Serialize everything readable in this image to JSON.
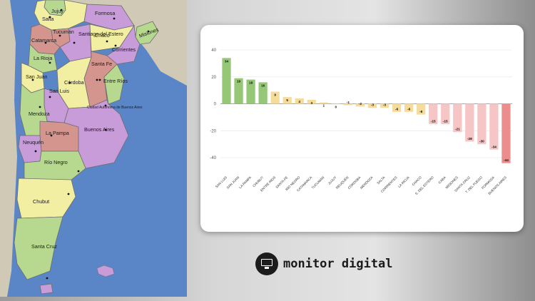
{
  "map": {
    "provinces": {
      "salta": "Salta",
      "jujuy": "Jujuy",
      "formosa": "Formosa",
      "misiones": "Misiones",
      "tucuman": "Tucumán",
      "santiago": "Santiago del Estero",
      "chaco": "Chaco",
      "catamarca": "Catamarca",
      "corrientes": "Corrientes",
      "larioja": "La Rioja",
      "santafe": "Santa Fe",
      "entrerios": "Entre Ríos",
      "sanjuan": "San Juan",
      "cordoba": "Córdoba",
      "sanluis": "San Luis",
      "caba": "Ciudad Autónoma de Buenos Aires",
      "mendoza": "Mendoza",
      "lapampa": "La Pampa",
      "buenosaires": "Buenos Aires",
      "neuquen": "Neuquén",
      "rionegro": "Río Negro",
      "chubut": "Chubut",
      "santacruz": "Santa Cruz"
    }
  },
  "chart_data": {
    "type": "bar",
    "title": "",
    "xlabel": "",
    "ylabel": "",
    "ylim": [
      -50,
      40
    ],
    "yticks": [
      40,
      20,
      0,
      -20,
      -40
    ],
    "grid": "horizontal",
    "categories": [
      "SAN LUIS",
      "SAN JUAN",
      "LA PAMPA",
      "CHUBUT",
      "ENTRE RÍOS",
      "SANTA FE",
      "RÍO NEGRO",
      "CATAMARCA",
      "TUCUMÁN",
      "JUJUY",
      "NEUQUÉN",
      "CÓRDOBA",
      "MENDOZA",
      "SALTA",
      "CORRIENTES",
      "LA RIOJA",
      "CHACO",
      "S. DEL ESTERO",
      "CABA",
      "MISIONES",
      "SANTA CRUZ",
      "T. DEL FUEGO",
      "FORMOSA",
      "BUENOS AIRES"
    ],
    "values": [
      34,
      19,
      18,
      16,
      9,
      5,
      4,
      3,
      1,
      0,
      -1,
      -2,
      -3,
      -3,
      -6,
      -6,
      -8,
      -15,
      -15,
      -21,
      -28,
      -30,
      -34,
      -44
    ],
    "colors": {
      "green": "#96c777",
      "yellow": "#f6dc9a",
      "pink": "#f6c5c5",
      "red": "#ec8d8d"
    }
  },
  "brand": {
    "name": "monitor digital",
    "icon": "monitor-icon"
  }
}
